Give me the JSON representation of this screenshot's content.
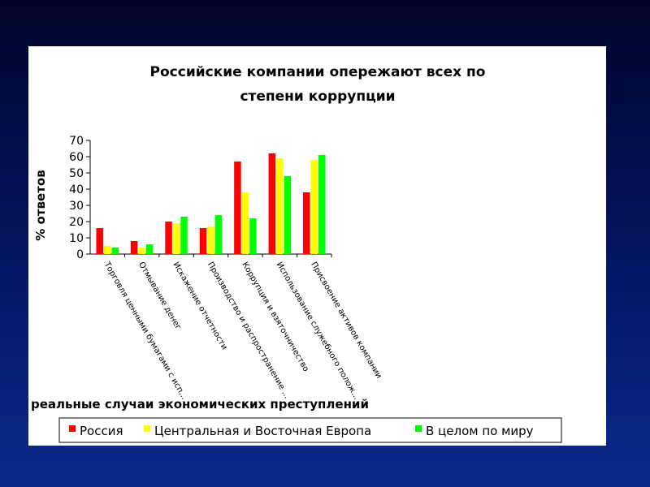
{
  "chart_data": {
    "type": "bar",
    "title": [
      "Российские компании опережают всех по",
      "степени коррупции"
    ],
    "ylabel": "% ответов",
    "xlabel": "реальные случаи экономических преступлений",
    "ylim": [
      0,
      70
    ],
    "ytick_step": 10,
    "grid": false,
    "legend_position": "bottom",
    "categories": [
      "Торговля ценными бумагами с исп...",
      "Отмывание денег",
      "Искажение отчетности",
      "Производство и распространение ...",
      "Коррупция и взяточничество",
      "Использование служебного полож...",
      "Присвоение активов компании"
    ],
    "series": [
      {
        "name": "Россия",
        "color": "#ff0000",
        "values": [
          16,
          8,
          20,
          16,
          57,
          62,
          38
        ]
      },
      {
        "name": "Центральная и Восточная  Европа",
        "color": "#ffff00",
        "values": [
          5,
          4,
          19,
          17,
          38,
          59,
          58
        ]
      },
      {
        "name": "В целом по миру",
        "color": "#00ff00",
        "values": [
          4,
          6,
          23,
          24,
          22,
          48,
          61
        ]
      }
    ]
  }
}
